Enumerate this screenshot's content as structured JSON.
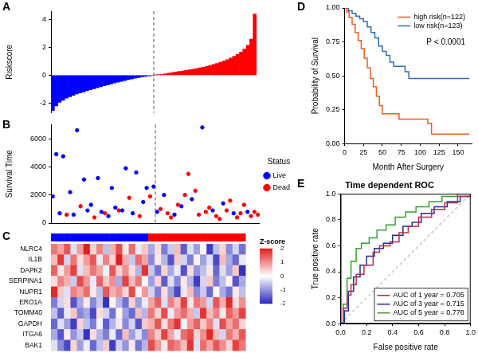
{
  "chart_data": [
    {
      "panel_label": "A",
      "type": "bar",
      "y_label": "Riskscore",
      "values": [
        -2.55,
        -2.2,
        -1.95,
        -1.8,
        -1.65,
        -1.55,
        -1.45,
        -1.35,
        -1.27,
        -1.2,
        -1.12,
        -1.05,
        -0.98,
        -0.9,
        -0.83,
        -0.76,
        -0.7,
        -0.63,
        -0.56,
        -0.5,
        -0.44,
        -0.38,
        -0.32,
        -0.27,
        -0.22,
        -0.17,
        -0.12,
        -0.08,
        -0.05,
        -0.02,
        0.02,
        0.05,
        0.08,
        0.11,
        0.15,
        0.19,
        0.23,
        0.27,
        0.31,
        0.35,
        0.39,
        0.43,
        0.48,
        0.53,
        0.58,
        0.64,
        0.7,
        0.77,
        0.85,
        0.93,
        1.02,
        1.12,
        1.23,
        1.36,
        1.5,
        1.67,
        1.88,
        2.15,
        2.6,
        4.4
      ],
      "colors": [
        "#0000ff",
        "#0000ff",
        "#0000ff",
        "#0000ff",
        "#0000ff",
        "#0000ff",
        "#0000ff",
        "#0000ff",
        "#0000ff",
        "#0000ff",
        "#0000ff",
        "#0000ff",
        "#0000ff",
        "#0000ff",
        "#0000ff",
        "#0000ff",
        "#0000ff",
        "#0000ff",
        "#0000ff",
        "#0000ff",
        "#0000ff",
        "#0000ff",
        "#0000ff",
        "#0000ff",
        "#0000ff",
        "#0000ff",
        "#0000ff",
        "#0000ff",
        "#0000ff",
        "#0000ff",
        "#ff0000",
        "#ff0000",
        "#ff0000",
        "#ff0000",
        "#ff0000",
        "#ff0000",
        "#ff0000",
        "#ff0000",
        "#ff0000",
        "#ff0000",
        "#ff0000",
        "#ff0000",
        "#ff0000",
        "#ff0000",
        "#ff0000",
        "#ff0000",
        "#ff0000",
        "#ff0000",
        "#ff0000",
        "#ff0000",
        "#ff0000",
        "#ff0000",
        "#ff0000",
        "#ff0000",
        "#ff0000",
        "#ff0000",
        "#ff0000",
        "#ff0000",
        "#ff0000",
        "#ff0000"
      ],
      "ylim": [
        -2.7,
        4.6
      ],
      "yticks": [
        -2,
        0,
        2,
        4
      ],
      "vline": 29.5,
      "tick_labels": "y",
      "grid": false
    },
    {
      "panel_label": "B",
      "type": "scatter",
      "y_label": "Survival Time",
      "legend_title": "Status",
      "legend": "right",
      "marker": "circle",
      "series": [
        {
          "name": "Live",
          "color": "#0000ff",
          "x": [
            1,
            2,
            3,
            4,
            6,
            7,
            8,
            10,
            11,
            12,
            14,
            15,
            17,
            18,
            19,
            21,
            22,
            24,
            25,
            27,
            28,
            30,
            31,
            33,
            36,
            38,
            41,
            44,
            47,
            50,
            53,
            57
          ],
          "values": [
            1900,
            4900,
            700,
            4750,
            2200,
            600,
            6600,
            3100,
            900,
            1300,
            3200,
            800,
            500,
            2500,
            1100,
            900,
            3900,
            700,
            3600,
            1500,
            2500,
            2600,
            800,
            2000,
            600,
            1200,
            1700,
            6800,
            900,
            1400,
            700,
            800
          ]
        },
        {
          "name": "Dead",
          "color": "#ff0000",
          "x": [
            5,
            9,
            13,
            16,
            20,
            23,
            26,
            29,
            32,
            34,
            35,
            37,
            39,
            40,
            42,
            43,
            45,
            46,
            48,
            49,
            51,
            52,
            54,
            55,
            56,
            58,
            59,
            60
          ],
          "values": [
            600,
            1200,
            400,
            700,
            900,
            1800,
            500,
            1900,
            1000,
            700,
            400,
            1300,
            2000,
            3500,
            2300,
            600,
            800,
            1100,
            500,
            300,
            900,
            1600,
            400,
            700,
            1300,
            500,
            800,
            600
          ]
        }
      ],
      "xlim": [
        0.5,
        60.5
      ],
      "ylim": [
        0,
        7000
      ],
      "yticks": [
        0,
        2000,
        4000,
        6000
      ],
      "vline": 30.5,
      "tick_labels": "y",
      "grid": false
    },
    {
      "panel_label": "C",
      "type": "heatmap",
      "rows": [
        "NLRC4",
        "IL1B",
        "DAPK2",
        "SERPINA1",
        "NUPR1",
        "ERO1A",
        "TOMM40",
        "GAPDH",
        "ITGA6",
        "BAK1"
      ],
      "cells": [
        [
          1.2,
          0.8,
          1.5,
          -0.3,
          0.9,
          2,
          0.4,
          1.1,
          -0.6,
          0.7,
          1.6,
          0.2,
          1.3,
          -0.2,
          0.5,
          -0.8,
          0.3,
          -1.2,
          -0.5,
          0.6,
          -1.5,
          -0.3,
          -0.9,
          0.1,
          -1.8,
          -0.6,
          0.4,
          -1.1,
          -0.4,
          -1.3
        ],
        [
          0.6,
          1.8,
          -0.4,
          1.2,
          0.3,
          0.9,
          1.5,
          -0.2,
          1.1,
          0.4,
          2,
          0.7,
          -0.5,
          1.3,
          0.8,
          -1.1,
          0.2,
          -0.7,
          -1.6,
          0.5,
          -0.4,
          -1.2,
          0.1,
          -0.9,
          -0.3,
          -1.7,
          0.6,
          -0.8,
          -1.4,
          -0.2
        ],
        [
          1.4,
          0.2,
          0.9,
          1.7,
          -0.3,
          0.6,
          1.2,
          0.8,
          -0.1,
          1.5,
          0.4,
          1,
          0.3,
          -0.7,
          1.8,
          -0.5,
          -1.3,
          0.4,
          -0.8,
          -0.2,
          -1.6,
          0.3,
          -1,
          -0.6,
          0.2,
          -1.4,
          -0.3,
          -0.9,
          0.5,
          -1.9
        ],
        [
          0.3,
          1.1,
          0.7,
          -0.5,
          1.6,
          0.9,
          -0.2,
          1.4,
          0.5,
          1,
          -0.8,
          1.7,
          0.6,
          1.2,
          0.1,
          -0.9,
          0.4,
          -1.5,
          -0.3,
          -1.1,
          0.2,
          -0.7,
          -1.8,
          -0.4,
          0.5,
          -1.2,
          -0.6,
          0.1,
          -1.6,
          -0.8
        ],
        [
          1.9,
          0.5,
          -0.3,
          1.1,
          0.8,
          1.3,
          0.2,
          -0.6,
          1.5,
          0.7,
          1,
          0.4,
          1.6,
          -0.1,
          0.9,
          -0.4,
          -1.2,
          0.3,
          -0.9,
          -1.7,
          -0.2,
          0.6,
          -1.1,
          -0.5,
          -1.4,
          0.1,
          -0.8,
          -1.3,
          0.2,
          -0.6
        ],
        [
          -1.2,
          -0.4,
          0.3,
          -1.6,
          -0.8,
          0.2,
          -1.1,
          -0.5,
          -1.9,
          0.1,
          -0.7,
          -1.3,
          0.4,
          -0.9,
          -0.2,
          0.8,
          1.4,
          -0.3,
          1.1,
          0.6,
          1.7,
          0.2,
          1.2,
          0.9,
          -0.4,
          1.5,
          0.7,
          1.9,
          0.3,
          1
        ],
        [
          -0.6,
          -1.5,
          -0.2,
          0.5,
          -1.1,
          -0.8,
          -1.7,
          0.3,
          -0.4,
          -1.3,
          0.1,
          -0.9,
          -1.4,
          0.6,
          -0.7,
          1.2,
          0.4,
          1.6,
          -0.2,
          0.9,
          1.3,
          0.7,
          -0.5,
          1.8,
          0.6,
          1.1,
          0.2,
          1.4,
          0.9,
          1.7
        ],
        [
          -1.4,
          -0.3,
          -0.9,
          -1.8,
          0.4,
          -0.6,
          -1.2,
          -0.1,
          -1.5,
          -0.7,
          0.2,
          -1.1,
          -0.4,
          -1.6,
          0.5,
          0.7,
          1.5,
          0.3,
          1.2,
          1.8,
          -0.1,
          0.9,
          1.4,
          0.5,
          1.1,
          -0.3,
          1.6,
          0.8,
          1.3,
          0.4
        ],
        [
          -0.8,
          -1.6,
          0.2,
          -1,
          -0.5,
          -1.9,
          0.3,
          -0.7,
          -1.2,
          -0.2,
          -1.4,
          0.6,
          -0.9,
          -0.3,
          -1.1,
          1.1,
          0.5,
          1.7,
          0.8,
          -0.2,
          1.3,
          1.6,
          0.4,
          1,
          1.9,
          0.6,
          -0.4,
          1.2,
          0.7,
          1.5
        ],
        [
          -0.3,
          -1.1,
          -1.7,
          0.4,
          -0.9,
          -0.2,
          -1.4,
          -0.6,
          0.5,
          -1.8,
          -0.4,
          -1,
          0.2,
          -1.3,
          -0.7,
          1.6,
          0.9,
          0.2,
          1.4,
          1.1,
          0.6,
          1.8,
          -0.3,
          1.3,
          0.8,
          1.5,
          1,
          0.4,
          1.7,
          1.2
        ]
      ],
      "colors": [
        "#0000ff",
        "#0000ff",
        "#0000ff",
        "#0000ff",
        "#0000ff",
        "#0000ff",
        "#0000ff",
        "#0000ff",
        "#0000ff",
        "#0000ff",
        "#0000ff",
        "#0000ff",
        "#0000ff",
        "#0000ff",
        "#0000ff",
        "#ff0000",
        "#ff0000",
        "#ff0000",
        "#ff0000",
        "#ff0000",
        "#ff0000",
        "#ff0000",
        "#ff0000",
        "#ff0000",
        "#ff0000",
        "#ff0000",
        "#ff0000",
        "#ff0000",
        "#ff0000",
        "#ff0000"
      ],
      "colorbar": {
        "title": "Z-score",
        "range": [
          -2,
          2
        ],
        "ticks": [
          -2,
          -1,
          0,
          1,
          2
        ]
      }
    },
    {
      "panel_label": "D",
      "type": "line",
      "annotation": "P < 0.0001",
      "x_label": "Month After Surgery",
      "y_label": "Probability of Survival",
      "legend": "top-right",
      "line_style": "step",
      "series": [
        {
          "name": "high risk(n=122)",
          "color": "#f05a1e",
          "x": [
            0,
            3,
            6,
            10,
            14,
            18,
            22,
            26,
            30,
            34,
            38,
            42,
            46,
            50,
            70,
            72,
            90,
            110,
            115,
            165
          ],
          "values": [
            1,
            0.97,
            0.93,
            0.88,
            0.82,
            0.76,
            0.7,
            0.63,
            0.56,
            0.48,
            0.42,
            0.35,
            0.28,
            0.22,
            0.22,
            0.18,
            0.18,
            0.15,
            0.07,
            0.07
          ]
        },
        {
          "name": "low risk(n=123)",
          "color": "#2e6db4",
          "x": [
            0,
            5,
            10,
            15,
            20,
            25,
            30,
            35,
            40,
            45,
            50,
            55,
            60,
            65,
            75,
            80,
            85,
            165
          ],
          "values": [
            1,
            0.98,
            0.96,
            0.94,
            0.92,
            0.9,
            0.86,
            0.82,
            0.78,
            0.72,
            0.68,
            0.65,
            0.6,
            0.57,
            0.57,
            0.53,
            0.48,
            0.48
          ]
        }
      ],
      "xlim": [
        0,
        168
      ],
      "xticks": [
        0,
        25,
        50,
        75,
        100,
        125,
        150
      ],
      "ylim": [
        0,
        1
      ],
      "yticks": [
        {
          "value": 0,
          "label": "0.00"
        },
        {
          "value": 0.25,
          "label": "0.25"
        },
        {
          "value": 0.5,
          "label": "0.50"
        },
        {
          "value": 0.75,
          "label": "0.75"
        },
        {
          "value": 1,
          "label": "1.00"
        }
      ],
      "grid": false
    },
    {
      "panel_label": "E",
      "type": "line",
      "title": "Time dependent ROC",
      "x_label": "False positive rate",
      "y_label": "True positive rate",
      "legend": "bottom-right",
      "line_style": "step",
      "series": [
        {
          "name": "AUC of 1 year = 0.705",
          "color": "#c0284a",
          "x": [
            0,
            0.02,
            0.05,
            0.08,
            0.12,
            0.18,
            0.25,
            0.3,
            0.38,
            0.45,
            0.52,
            0.6,
            0.7,
            0.8,
            0.9,
            1
          ],
          "values": [
            0,
            0.12,
            0.22,
            0.3,
            0.38,
            0.45,
            0.55,
            0.6,
            0.63,
            0.7,
            0.75,
            0.82,
            0.88,
            0.93,
            0.98,
            1
          ]
        },
        {
          "name": "AUC of 3 year = 0.715",
          "color": "#1f2f8f",
          "x": [
            0,
            0.03,
            0.06,
            0.1,
            0.15,
            0.2,
            0.26,
            0.33,
            0.4,
            0.48,
            0.55,
            0.62,
            0.72,
            0.82,
            0.92,
            1
          ],
          "values": [
            0,
            0.1,
            0.25,
            0.36,
            0.45,
            0.52,
            0.58,
            0.62,
            0.68,
            0.75,
            0.78,
            0.85,
            0.9,
            0.94,
            0.98,
            1
          ]
        },
        {
          "name": "AUC of 5 year = 0.778",
          "color": "#33a02c",
          "x": [
            0,
            0.02,
            0.05,
            0.08,
            0.12,
            0.16,
            0.22,
            0.28,
            0.35,
            0.42,
            0.5,
            0.58,
            0.68,
            0.78,
            0.9,
            1
          ],
          "values": [
            0,
            0.15,
            0.35,
            0.48,
            0.58,
            0.62,
            0.66,
            0.72,
            0.76,
            0.82,
            0.86,
            0.9,
            0.94,
            0.98,
            1,
            1
          ]
        }
      ],
      "reference_line": {
        "x": [
          0,
          1
        ],
        "values": [
          0,
          1
        ],
        "line_style": "dashed"
      },
      "xlim": [
        0,
        1
      ],
      "xticks": [
        {
          "value": 0,
          "label": "0.0"
        },
        {
          "value": 0.2,
          "label": "0.2"
        },
        {
          "value": 0.4,
          "label": "0.4"
        },
        {
          "value": 0.6,
          "label": "0.6"
        },
        {
          "value": 0.8,
          "label": "0.8"
        },
        {
          "value": 1,
          "label": "1.0"
        }
      ],
      "ylim": [
        0,
        1
      ],
      "yticks": [
        {
          "value": 0,
          "label": "0.0"
        },
        {
          "value": 0.2,
          "label": "0.2"
        },
        {
          "value": 0.4,
          "label": "0.4"
        },
        {
          "value": 0.6,
          "label": "0.6"
        },
        {
          "value": 0.8,
          "label": "0.8"
        },
        {
          "value": 1,
          "label": "1.0"
        }
      ],
      "grid": false
    }
  ]
}
